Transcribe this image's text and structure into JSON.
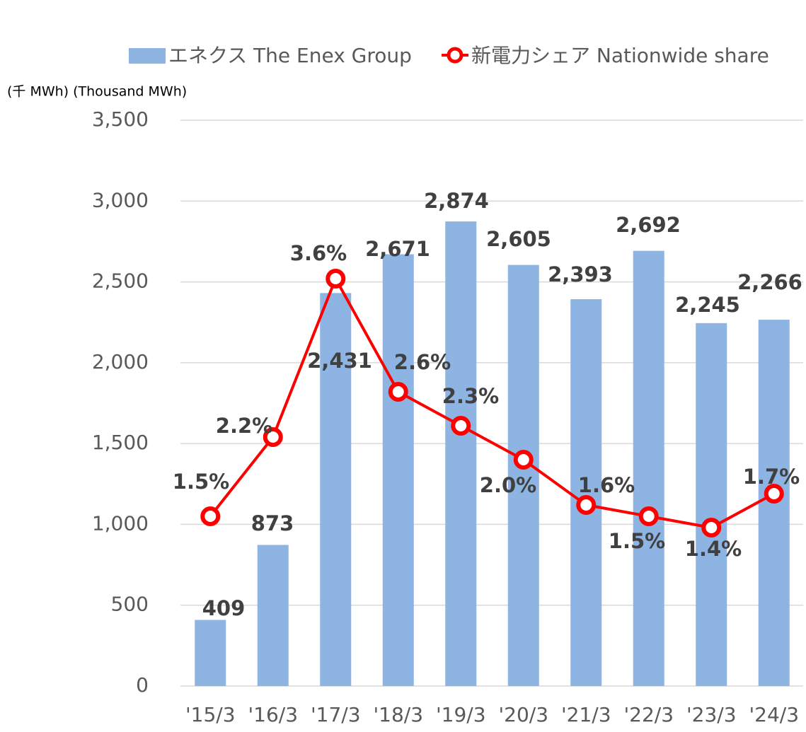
{
  "chart_data": {
    "type": "bar+line",
    "y_axis_label": "(千 MWh) (Thousand MWh)",
    "categories": [
      "'15/3",
      "'16/3",
      "'17/3",
      "'18/3",
      "'19/3",
      "'20/3",
      "'21/3",
      "'22/3",
      "'23/3",
      "'24/3"
    ],
    "series": [
      {
        "name": "エネクス The Enex Group",
        "type": "bar",
        "color": "#8eb4e3",
        "values": [
          409,
          873,
          2431,
          2671,
          2874,
          2605,
          2393,
          2692,
          2245,
          2266
        ],
        "value_labels": [
          "409",
          "873",
          "2,431",
          "2,671",
          "2,874",
          "2,605",
          "2,393",
          "2,692",
          "2,245",
          "2,266"
        ]
      },
      {
        "name": "新電力シェア Nationwide share",
        "type": "line",
        "axis": "y2",
        "color": "#ff0000",
        "values": [
          1.5,
          2.2,
          3.6,
          2.6,
          2.3,
          2.0,
          1.6,
          1.5,
          1.4,
          1.7
        ],
        "value_labels": [
          "1.5%",
          "2.2%",
          "3.6%",
          "2.6%",
          "2.3%",
          "2.0%",
          "1.6%",
          "1.5%",
          "1.4%",
          "1.7%"
        ]
      }
    ],
    "ylim": [
      0,
      3500
    ],
    "yticks": [
      0,
      500,
      {
        "value": 1000,
        "label": "1,000"
      },
      {
        "value": 1500,
        "label": "1,500"
      },
      {
        "value": 2000,
        "label": "2,000"
      },
      {
        "value": 2500,
        "label": "2,500"
      },
      {
        "value": 3000,
        "label": "3,000"
      },
      {
        "value": 3500,
        "label": "3,500"
      }
    ],
    "y2lim": [
      0,
      5
    ],
    "grid": true,
    "legend": "top"
  }
}
